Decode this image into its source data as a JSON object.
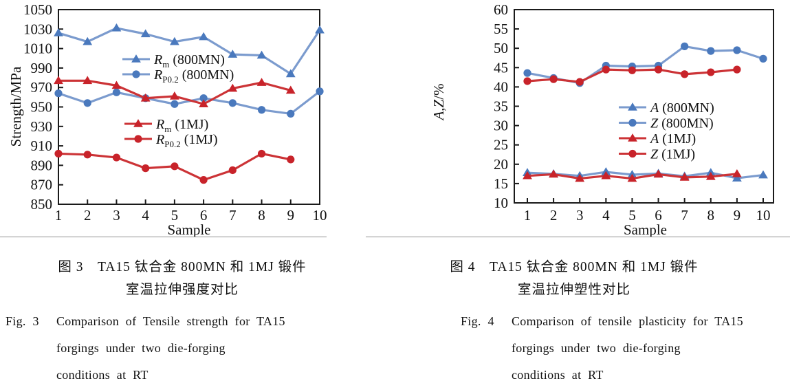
{
  "colors": {
    "blue_marker": "#4a79bd",
    "blue_line": "#7b9bce",
    "red_marker": "#c8232a",
    "red_line": "#cc3336",
    "axis": "#1a1a1a",
    "divider": "#8f8f8f"
  },
  "chart_data": [
    {
      "type": "line",
      "xlabel": "Sample",
      "ylabel": "Strength/MPa",
      "ylabel_parts": [
        {
          "t": "Strength/MPa",
          "i": false
        }
      ],
      "categories": [
        1,
        2,
        3,
        4,
        5,
        6,
        7,
        8,
        9,
        10
      ],
      "ylim": [
        850,
        1050
      ],
      "ytick_step": 20,
      "grid": false,
      "legend_position": "inside",
      "series": [
        {
          "name": "Rm (800MN)",
          "marker": "triangle",
          "color": "#4a79bd",
          "line_color": "#7b9bce",
          "values": [
            1026,
            1017,
            1031,
            1025,
            1017,
            1022,
            1004,
            1003,
            984,
            1029
          ]
        },
        {
          "name": "RP0.2 (800MN)",
          "marker": "circle",
          "color": "#4a79bd",
          "line_color": "#7b9bce",
          "values": [
            964,
            954,
            965,
            959,
            953,
            959,
            954,
            947,
            943,
            966
          ]
        },
        {
          "name": "Rm (1MJ)",
          "marker": "triangle",
          "color": "#c8232a",
          "line_color": "#cc3336",
          "values": [
            977,
            977,
            972,
            959,
            961,
            953,
            969,
            975,
            967
          ]
        },
        {
          "name": "RP0.2 (1MJ)",
          "marker": "circle",
          "color": "#c8232a",
          "line_color": "#cc3336",
          "values": [
            902,
            901,
            898,
            887,
            889,
            875,
            885,
            902,
            896
          ]
        }
      ],
      "legend": [
        {
          "series": 0,
          "main": "R",
          "sub": "m",
          "rest": "(800MN)"
        },
        {
          "series": 1,
          "main": "R",
          "sub": "P0.2",
          "rest": "(800MN)"
        },
        {
          "series": 2,
          "main": "R",
          "sub": "m",
          "rest": "(1MJ)"
        },
        {
          "series": 3,
          "main": "R",
          "sub": "P0.2",
          "rest": "(1MJ)"
        }
      ]
    },
    {
      "type": "line",
      "xlabel": "Sample",
      "ylabel": "A,Z/%",
      "ylabel_parts": [
        {
          "t": "A",
          "i": true
        },
        {
          "t": ",",
          "i": false
        },
        {
          "t": "Z",
          "i": true
        },
        {
          "t": "/%",
          "i": false
        }
      ],
      "categories": [
        1,
        2,
        3,
        4,
        5,
        6,
        7,
        8,
        9,
        10
      ],
      "ylim": [
        10,
        60
      ],
      "ytick_step": 5,
      "grid": false,
      "legend_position": "inside",
      "series": [
        {
          "name": "A (800MN)",
          "marker": "triangle",
          "color": "#4a79bd",
          "line_color": "#7b9bce",
          "values": [
            17.8,
            17.5,
            17.0,
            18.0,
            17.3,
            17.6,
            16.9,
            17.8,
            16.4,
            17.2
          ]
        },
        {
          "name": "Z (800MN)",
          "marker": "circle",
          "color": "#4a79bd",
          "line_color": "#7b9bce",
          "values": [
            43.6,
            42.3,
            41.0,
            45.5,
            45.3,
            45.5,
            50.5,
            49.3,
            49.5,
            47.3
          ]
        },
        {
          "name": "A (1MJ)",
          "marker": "triangle",
          "color": "#c8232a",
          "line_color": "#cc3336",
          "values": [
            17.0,
            17.4,
            16.3,
            17.0,
            16.3,
            17.4,
            16.6,
            16.8,
            17.5
          ]
        },
        {
          "name": "Z (1MJ)",
          "marker": "circle",
          "color": "#c8232a",
          "line_color": "#cc3336",
          "values": [
            41.5,
            42.0,
            41.3,
            44.5,
            44.3,
            44.5,
            43.3,
            43.8,
            44.5
          ]
        }
      ],
      "legend": [
        {
          "series": 0,
          "main": "A",
          "sub": "",
          "rest": "(800MN)"
        },
        {
          "series": 1,
          "main": "Z",
          "sub": "",
          "rest": "(800MN)"
        },
        {
          "series": 2,
          "main": "A",
          "sub": "",
          "rest": "(1MJ)"
        },
        {
          "series": 3,
          "main": "Z",
          "sub": "",
          "rest": "(1MJ)"
        }
      ]
    }
  ],
  "captions": {
    "left": {
      "cn1": "图 3　TA15 钛合金 800MN 和 1MJ 锻件",
      "cn2": "室温拉伸强度对比",
      "en_label": "Fig. 3",
      "en1": "Comparison of Tensile strength for TA15",
      "en2": "forgings under two die-forging",
      "en3": "conditions at RT"
    },
    "right": {
      "cn1": "图 4　TA15 钛合金 800MN 和 1MJ 锻件",
      "cn2": "室温拉伸塑性对比",
      "en_label": "Fig. 4",
      "en1": "Comparison of tensile plasticity for TA15",
      "en2": "forgings under two die-forging",
      "en3": "conditions at RT"
    }
  }
}
